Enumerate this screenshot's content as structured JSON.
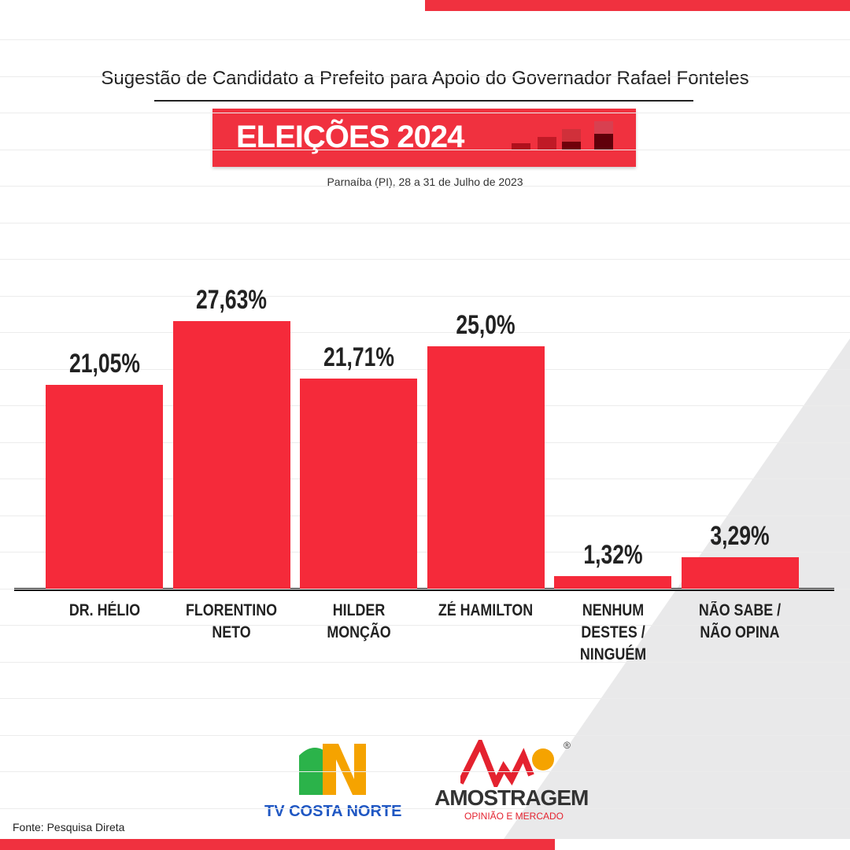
{
  "chart_data": {
    "type": "bar",
    "title": "Sugestão de Candidato a Prefeito para Apoio do Governador Rafael Fonteles",
    "badge": "ELEIÇÕES 2024",
    "subtitle": "Parnaíba (PI), 28 a 31 de Julho de 2023",
    "categories": [
      "DR. HÉLIO",
      "FLORENTINO NETO",
      "HILDER MONÇÃO",
      "ZÉ HAMILTON",
      "NENHUM DESTES / NINGUÉM",
      "NÃO SABE / NÃO OPINA"
    ],
    "values": [
      21.05,
      27.63,
      21.71,
      25.0,
      1.32,
      3.29
    ],
    "value_labels": [
      "21,05%",
      "27,63%",
      "21,71%",
      "25,0%",
      "1,32%",
      "3,29%"
    ],
    "color": "#f52a3a"
  },
  "branding": {
    "source": "Fonte: Pesquisa Direta",
    "tv": "TV COSTA NORTE",
    "institute": "AMOSTRAGEM",
    "institute_tagline": "OPINIÃO E MERCADO",
    "registered": "®"
  }
}
